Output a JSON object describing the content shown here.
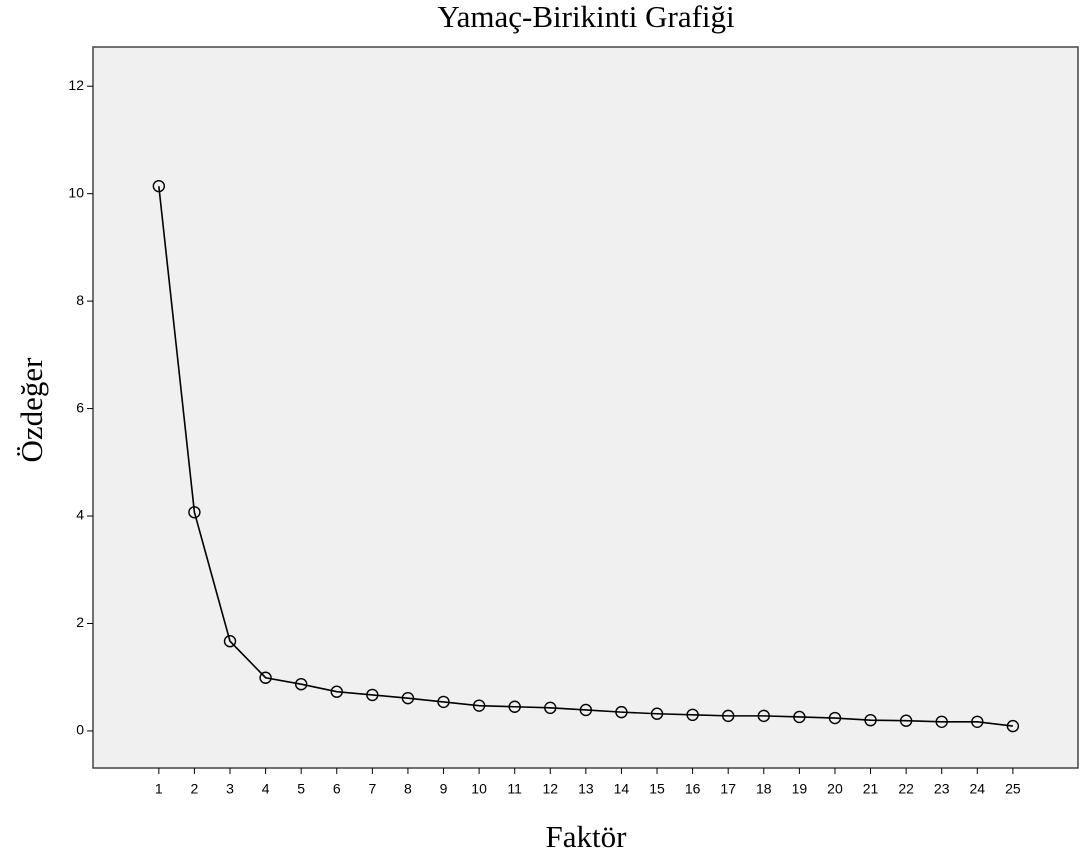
{
  "chart_data": {
    "type": "line",
    "title": "Yamaç-Birikinti Grafiği",
    "xlabel": "Faktör",
    "ylabel": "Özdeğer",
    "x": [
      1,
      2,
      3,
      4,
      5,
      6,
      7,
      8,
      9,
      10,
      11,
      12,
      13,
      14,
      15,
      16,
      17,
      18,
      19,
      20,
      21,
      22,
      23,
      24,
      25
    ],
    "series": [
      {
        "color": "#000000",
        "values": [
          10.14,
          4.07,
          1.67,
          0.99,
          0.87,
          0.73,
          0.67,
          0.61,
          0.54,
          0.47,
          0.45,
          0.43,
          0.39,
          0.35,
          0.32,
          0.3,
          0.28,
          0.28,
          0.26,
          0.24,
          0.2,
          0.19,
          0.17,
          0.17,
          0.09
        ]
      }
    ],
    "xlim": [
      -0.85,
      26.83
    ],
    "xticks": [
      1,
      2,
      3,
      4,
      5,
      6,
      7,
      8,
      9,
      10,
      11,
      12,
      13,
      14,
      15,
      16,
      17,
      18,
      19,
      20,
      21,
      22,
      23,
      24,
      25
    ],
    "ylim": [
      -0.69,
      12.73
    ],
    "yticks": [
      0,
      2,
      4,
      6,
      8,
      10,
      12
    ],
    "grid": false
  }
}
